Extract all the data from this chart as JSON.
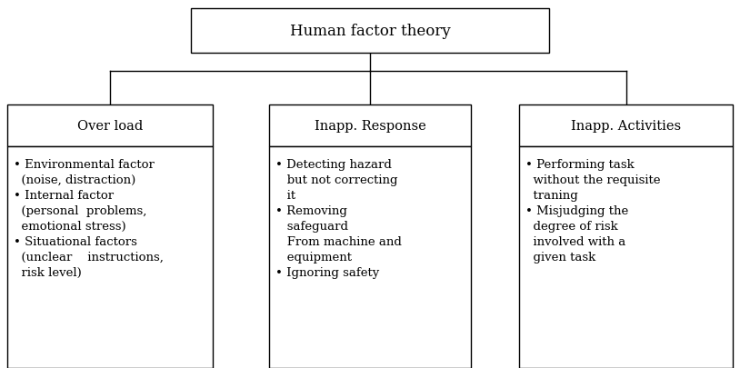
{
  "title": "Human factor theory",
  "col1_header": "Over load",
  "col2_header": "Inapp. Response",
  "col3_header": "Inapp. Activities",
  "col1_body": "• Environmental factor\n  (noise, distraction)\n• Internal factor\n  (personal  problems,\n  emotional stress)\n• Situational factors\n  (unclear    instructions,\n  risk level)",
  "col2_body": "• Detecting hazard\n   but not correcting\n   it\n• Removing\n   safeguard\n   From machine and\n   equipment\n• Ignoring safety",
  "col3_body": "• Performing task\n  without the requisite\n  traning\n• Misjudging the\n  degree of risk\n  involved with a\n  given task",
  "bg_color": "#ffffff",
  "box_edge_color": "#000000",
  "text_color": "#000000",
  "font_size": 9.5,
  "header_font_size": 10.5,
  "title_font_size": 12,
  "fig_width": 8.14,
  "fig_height": 4.06,
  "dpi": 100
}
